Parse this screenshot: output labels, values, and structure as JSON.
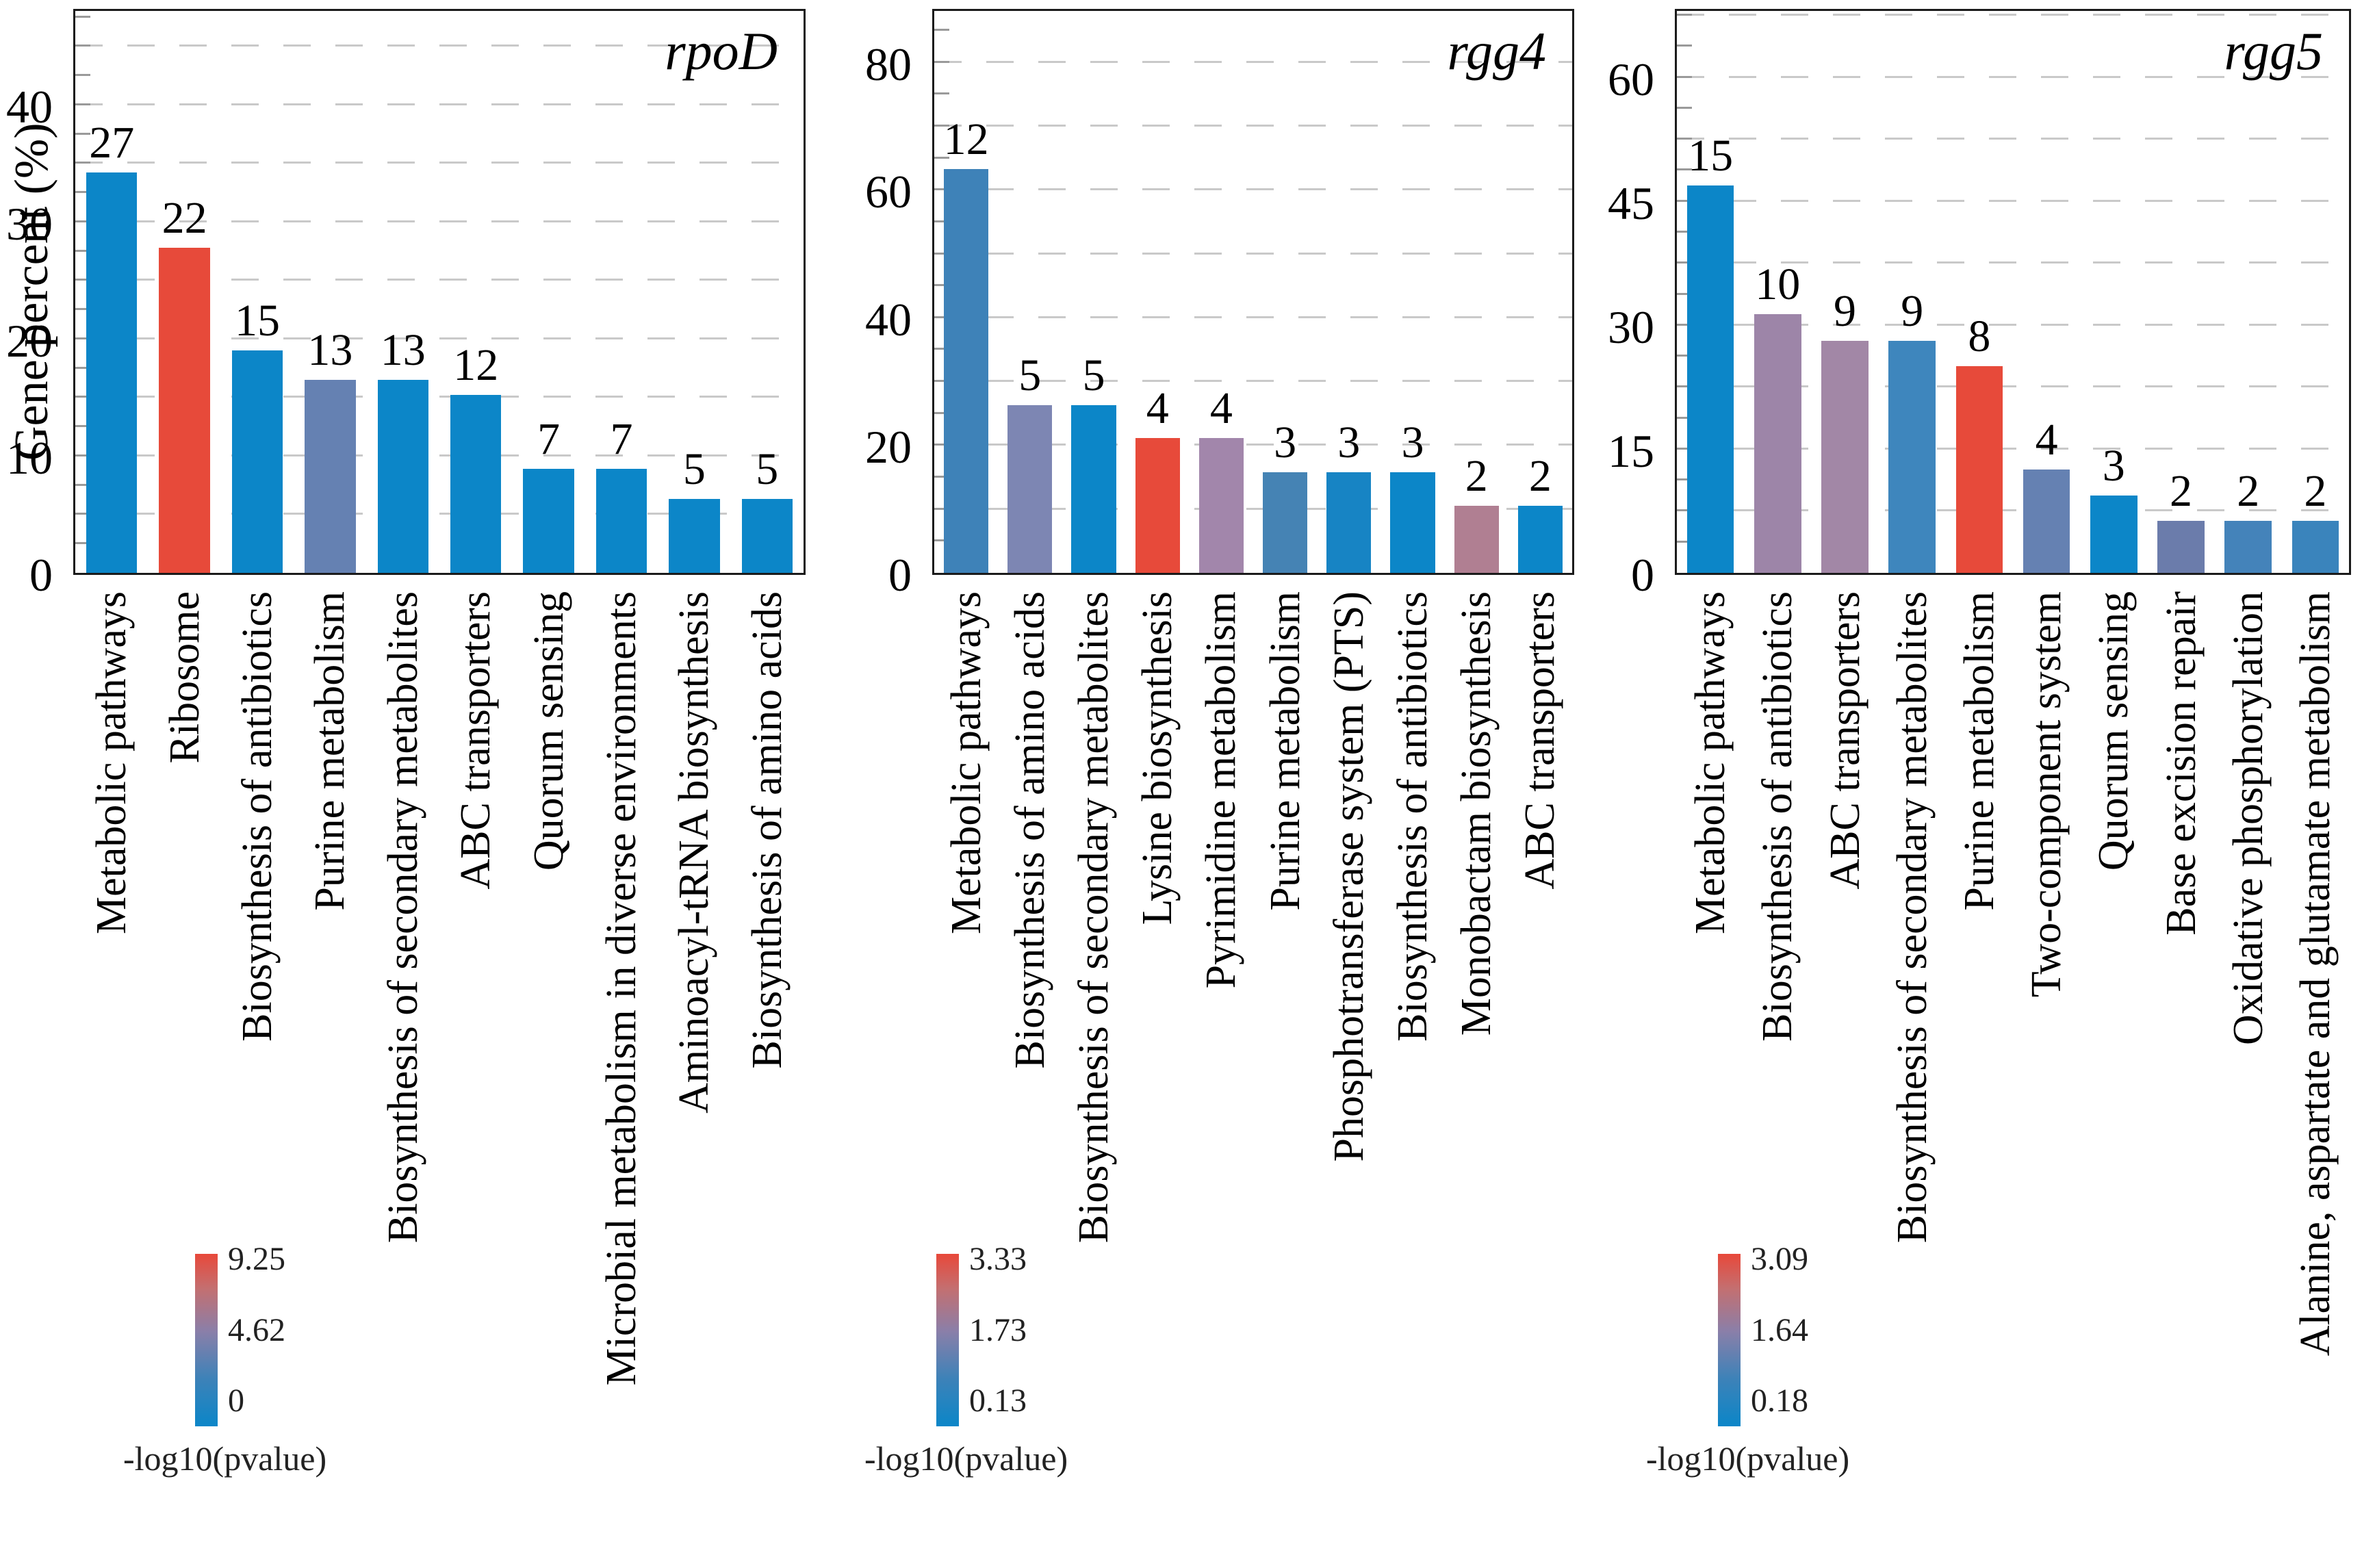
{
  "figure": {
    "y_axis_title": "Gene percent (%)",
    "legend_caption": "-log10(pvalue)"
  },
  "chart_data": [
    {
      "type": "bar",
      "title": "rpoD",
      "ylabel": "Gene percent (%)",
      "xlabel": "",
      "ylim": [
        0,
        48
      ],
      "y_ticks": [
        0,
        10,
        20,
        30,
        40
      ],
      "grid_step": 5,
      "grid": "dashed",
      "categories": [
        "Metabolic pathways",
        "Ribosome",
        "Biosynthesis of antibiotics",
        "Purine metabolism",
        "Biosynthesis of secondary metabolites",
        "ABC transporters",
        "Quorum sensing",
        "Microbial metabolism in diverse environments",
        "Aminoacyl-tRNA biosynthesis",
        "Biosynthesis of amino acids"
      ],
      "values": [
        34.2,
        27.8,
        19.0,
        16.5,
        16.5,
        15.2,
        8.9,
        8.9,
        6.3,
        6.3
      ],
      "data_labels": [
        "27",
        "22",
        "15",
        "13",
        "13",
        "12",
        "7",
        "7",
        "5",
        "5"
      ],
      "bar_colors": [
        "#0C86C8",
        "#E74A3A",
        "#0C86C8",
        "#6581B2",
        "#0C86C8",
        "#0C86C8",
        "#0C86C8",
        "#0C86C8",
        "#0C86C8",
        "#0C86C8"
      ],
      "legend": {
        "title": "-log10(pvalue)",
        "ticks": [
          "9.25",
          "4.62",
          "0"
        ],
        "color_high": "#E8483A",
        "color_low": "#0B86C8",
        "position": "bottom-left"
      }
    },
    {
      "type": "bar",
      "title": "rgg4",
      "ylabel": "Gene percent (%)",
      "xlabel": "",
      "ylim": [
        0,
        88
      ],
      "y_ticks": [
        0,
        20,
        40,
        60,
        80
      ],
      "grid_step": 10,
      "grid": "dashed",
      "categories": [
        "Metabolic pathways",
        "Biosynthesis of amino acids",
        "Biosynthesis of secondary metabolites",
        "Lysine biosynthesis",
        "Pyrimidine metabolism",
        "Purine metabolism",
        "Phosphotransferase system (PTS)",
        "Biosynthesis of antibiotics",
        "Monobactam biosynthesis",
        "ABC transporters"
      ],
      "values": [
        63.2,
        26.3,
        26.3,
        21.1,
        21.1,
        15.8,
        15.8,
        15.8,
        10.5,
        10.5
      ],
      "data_labels": [
        "12",
        "5",
        "5",
        "4",
        "4",
        "3",
        "3",
        "3",
        "2",
        "2"
      ],
      "bar_colors": [
        "#3E82B8",
        "#7D86B3",
        "#0C86C8",
        "#E74A3A",
        "#A286AB",
        "#4583B4",
        "#1784C4",
        "#0C86C8",
        "#B07F92",
        "#0C86C8"
      ],
      "legend": {
        "title": "-log10(pvalue)",
        "ticks": [
          "3.33",
          "1.73",
          "0.13"
        ],
        "color_high": "#E8483A",
        "color_low": "#0B86C8",
        "position": "bottom-left"
      }
    },
    {
      "type": "bar",
      "title": "rgg5",
      "ylabel": "Gene percent (%)",
      "xlabel": "",
      "ylim": [
        0,
        68
      ],
      "y_ticks": [
        0,
        15,
        30,
        45,
        60
      ],
      "grid_step": 7.5,
      "grid": "dashed",
      "categories": [
        "Metabolic pathways",
        "Biosynthesis of antibiotics",
        "ABC transporters",
        "Biosynthesis of secondary metabolites",
        "Purine metabolism",
        "Two-component system",
        "Quorum sensing",
        "Base excision repair",
        "Oxidative phosphorylation",
        "Alanine, aspartate and glutamate metabolism"
      ],
      "values": [
        46.9,
        31.3,
        28.1,
        28.1,
        25.0,
        12.5,
        9.4,
        6.3,
        6.3,
        6.3
      ],
      "data_labels": [
        "15",
        "10",
        "9",
        "9",
        "8",
        "4",
        "3",
        "2",
        "2",
        "2"
      ],
      "bar_colors": [
        "#0C86C8",
        "#9D85A8",
        "#A287A6",
        "#3E86BD",
        "#E74A3A",
        "#6581B2",
        "#0C86C8",
        "#6B7CAB",
        "#4483BA",
        "#3A84BC"
      ],
      "legend": {
        "title": "-log10(pvalue)",
        "ticks": [
          "3.09",
          "1.64",
          "0.18"
        ],
        "color_high": "#E8483A",
        "color_low": "#0B86C8",
        "position": "bottom-left"
      }
    }
  ]
}
